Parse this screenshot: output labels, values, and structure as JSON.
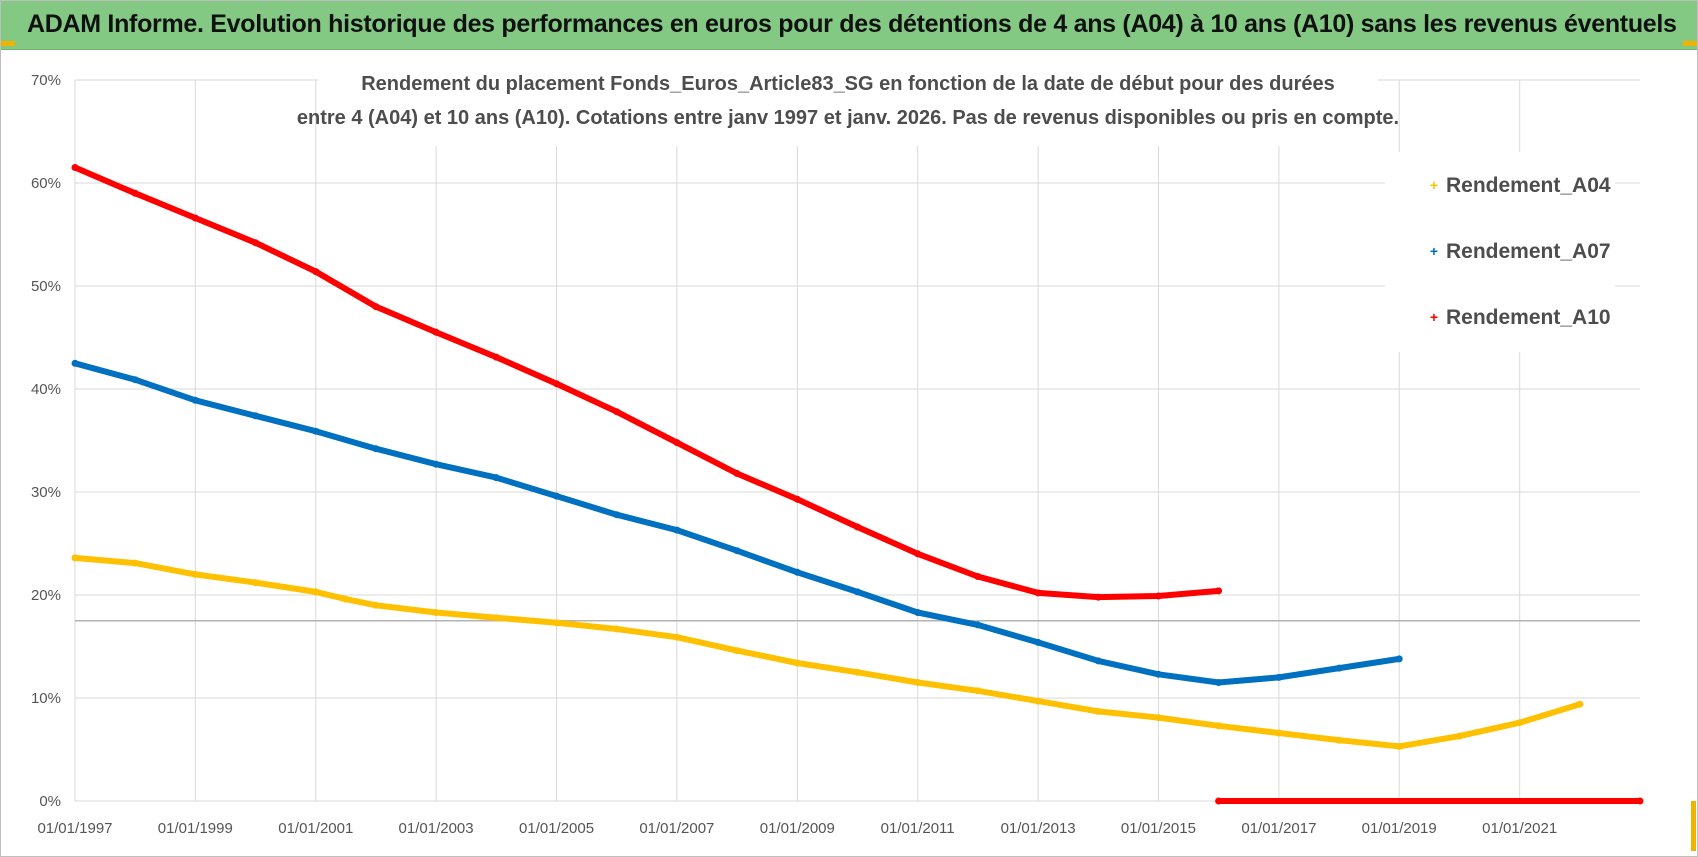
{
  "banner": {
    "title": "ADAM Informe. Evolution historique des performances en euros pour des détentions de 4 ans (A04) à 10 ans (A10) sans les revenus éventuels"
  },
  "colors": {
    "banner_bg": "#83c983",
    "series_a04": "#ffc000",
    "series_a07": "#0070c0",
    "series_a10": "#ff0000",
    "corner_marks": "#f0b400"
  },
  "chart_data": {
    "type": "line",
    "title_line1": "Rendement du placement Fonds_Euros_Article83_SG en fonction de la date de début pour des durées",
    "title_line2": "entre 4 (A04) et 10 ans (A10).  Cotations entre janv 1997 et janv. 2026. Pas de revenus disponibles ou pris en compte.",
    "xlabel": "",
    "ylabel": "",
    "ylim": [
      0,
      70
    ],
    "y_ticks": [
      "0%",
      "10%",
      "20%",
      "30%",
      "40%",
      "50%",
      "60%",
      "70%"
    ],
    "x_ticks": [
      "01/01/1997",
      "01/01/1999",
      "01/01/2001",
      "01/01/2003",
      "01/01/2005",
      "01/01/2007",
      "01/01/2009",
      "01/01/2011",
      "01/01/2013",
      "01/01/2015",
      "01/01/2017",
      "01/01/2019",
      "01/01/2021"
    ],
    "x_range": [
      "01/01/1997",
      "01/01/2023"
    ],
    "grid": true,
    "reference_line_y": 17.5,
    "legend_position": "top-right",
    "series": [
      {
        "name": "Rendement_A04",
        "color": "#ffc000",
        "x": [
          "01/01/1997",
          "01/01/1998",
          "01/01/1999",
          "01/01/2000",
          "01/01/2001",
          "01/07/2001",
          "01/01/2002",
          "01/01/2003",
          "01/01/2004",
          "01/01/2005",
          "01/01/2006",
          "01/01/2007",
          "01/01/2008",
          "01/01/2009",
          "01/01/2010",
          "01/01/2011",
          "01/01/2012",
          "01/01/2013",
          "01/01/2014",
          "01/01/2015",
          "01/01/2016",
          "01/01/2017",
          "01/01/2018",
          "01/01/2019",
          "01/01/2020",
          "01/01/2021",
          "01/01/2022"
        ],
        "values": [
          23.6,
          23.1,
          22.0,
          21.2,
          20.3,
          19.6,
          19.0,
          18.3,
          17.8,
          17.3,
          16.7,
          15.9,
          14.6,
          13.4,
          12.5,
          11.5,
          10.7,
          9.7,
          8.7,
          8.1,
          7.3,
          6.6,
          5.9,
          5.3,
          6.3,
          7.6,
          9.4
        ]
      },
      {
        "name": "Rendement_A07",
        "color": "#0070c0",
        "x": [
          "01/01/1997",
          "01/01/1998",
          "01/01/1999",
          "01/01/2000",
          "01/01/2001",
          "01/01/2002",
          "01/01/2003",
          "01/01/2004",
          "01/01/2005",
          "01/01/2006",
          "01/01/2007",
          "01/01/2008",
          "01/01/2009",
          "01/01/2010",
          "01/01/2011",
          "01/01/2012",
          "01/01/2013",
          "01/01/2014",
          "01/01/2015",
          "01/01/2016",
          "01/01/2017",
          "01/01/2018",
          "01/01/2019"
        ],
        "values": [
          42.5,
          40.9,
          38.9,
          37.4,
          35.9,
          34.2,
          32.7,
          31.4,
          29.6,
          27.8,
          26.3,
          24.3,
          22.2,
          20.3,
          18.3,
          17.1,
          15.4,
          13.6,
          12.3,
          11.5,
          12.0,
          12.9,
          13.8
        ]
      },
      {
        "name": "Rendement_A10",
        "color": "#ff0000",
        "x": [
          "01/01/1997",
          "01/01/1998",
          "01/01/1999",
          "01/01/2000",
          "01/01/2001",
          "01/01/2002",
          "01/01/2003",
          "01/01/2004",
          "01/01/2005",
          "01/01/2006",
          "01/01/2007",
          "01/01/2008",
          "01/01/2009",
          "01/01/2010",
          "01/01/2011",
          "01/01/2012",
          "01/01/2013",
          "01/01/2014",
          "01/01/2015",
          "01/01/2016"
        ],
        "values": [
          61.5,
          59.0,
          56.6,
          54.2,
          51.4,
          48.0,
          45.5,
          43.1,
          40.5,
          37.8,
          34.8,
          31.8,
          29.3,
          26.6,
          24.0,
          21.8,
          20.2,
          19.8,
          19.9,
          20.4
        ]
      },
      {
        "name": "Rendement_A10",
        "color": "#ff0000",
        "legend": false,
        "x": [
          "01/01/2016",
          "01/01/2023"
        ],
        "values": [
          0,
          0
        ]
      }
    ]
  }
}
